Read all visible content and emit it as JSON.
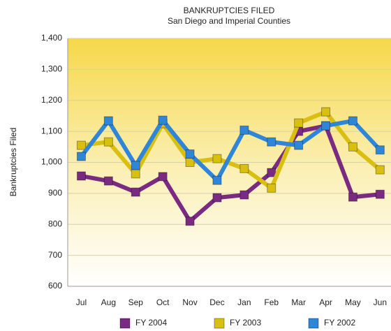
{
  "chart_data": {
    "type": "line",
    "title": "BANKRUPTCIES FILED",
    "subtitle": "San Diego and Imperial Counties",
    "y_label": "Bankruptcies Filed",
    "categories": [
      "Jul",
      "Aug",
      "Sep",
      "Oct",
      "Nov",
      "Dec",
      "Jan",
      "Feb",
      "Mar",
      "Apr",
      "May",
      "Jun"
    ],
    "series": [
      {
        "name": "FY 2004",
        "color": "#7a2a80",
        "values": [
          956,
          940,
          904,
          954,
          810,
          886,
          895,
          967,
          1100,
          1118,
          888,
          897
        ]
      },
      {
        "name": "FY 2003",
        "color": "#d8bf10",
        "values": [
          1055,
          1066,
          963,
          1125,
          1000,
          1012,
          980,
          917,
          1127,
          1163,
          1050,
          976
        ]
      },
      {
        "name": "FY 2002",
        "color": "#2f86d8",
        "values": [
          1019,
          1134,
          990,
          1136,
          1027,
          942,
          1104,
          1066,
          1055,
          1118,
          1134,
          1040
        ]
      }
    ],
    "ylim": [
      600,
      1400
    ],
    "yticks": [
      600,
      700,
      800,
      900,
      {
        "value": 1000,
        "label": "1,000"
      },
      {
        "value": 1100,
        "label": "1,100"
      },
      {
        "value": 1200,
        "label": "1,200"
      },
      {
        "value": 1300,
        "label": "1,300"
      },
      {
        "value": 1400,
        "label": "1,400"
      }
    ],
    "grid": true,
    "legend": "bottom"
  }
}
